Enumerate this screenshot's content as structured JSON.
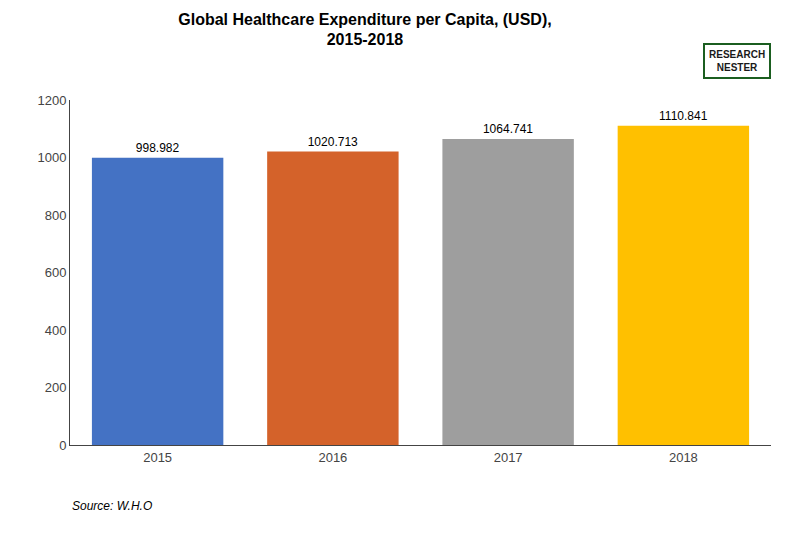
{
  "chart_data": {
    "type": "bar",
    "title": "Global Healthcare Expenditure per Capita, (USD),\n2015-2018",
    "categories": [
      "2015",
      "2016",
      "2017",
      "2018"
    ],
    "values": [
      998.982,
      1020.713,
      1064.741,
      1110.841
    ],
    "colors": [
      "#4472C4",
      "#D4622A",
      "#9E9E9E",
      "#FFC000"
    ],
    "ylim": [
      0,
      1200
    ],
    "yticks": [
      0,
      200,
      400,
      600,
      800,
      1000,
      1200
    ],
    "grid": false,
    "data_labels": true,
    "annotations": [
      "Source: W.H.O",
      "RESEARCH\nNESTER"
    ]
  }
}
